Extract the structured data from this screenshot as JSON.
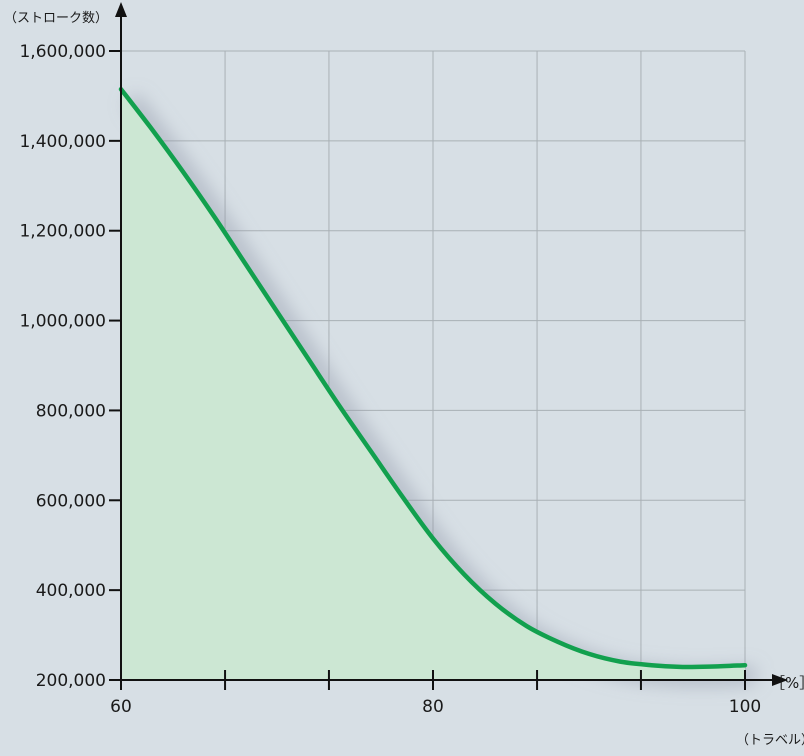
{
  "chart_data": {
    "type": "area",
    "title": "",
    "ylabel": "（ストローク数）",
    "xlabel": "（トラベル）",
    "x_unit": "［%］",
    "xlim": [
      60,
      100
    ],
    "ylim": [
      200000,
      1600000
    ],
    "y_ticks": [
      200000,
      400000,
      600000,
      800000,
      1000000,
      1200000,
      1400000,
      1600000
    ],
    "y_tick_labels": [
      "200,000",
      "400,000",
      "600,000",
      "800,000",
      "1,000,000",
      "1,200,000",
      "1,400,000",
      "1,600,000"
    ],
    "x_ticks": [
      60,
      80,
      100
    ],
    "x_tick_labels": [
      "60",
      "80",
      "100"
    ],
    "x_minor_ticks": [
      66.67,
      73.33,
      86.67,
      93.33
    ],
    "grid": true,
    "series": [
      {
        "color": "#12a04e",
        "fill": "#cce7d3",
        "x": [
          60,
          62,
          64,
          66,
          68,
          70,
          72,
          74,
          76,
          78,
          80,
          82,
          84,
          86,
          88,
          90,
          92,
          94,
          96,
          98,
          100
        ],
        "y": [
          1515000,
          1425000,
          1330000,
          1230000,
          1125000,
          1020000,
          915000,
          810000,
          710000,
          610000,
          515000,
          435000,
          370000,
          320000,
          285000,
          258000,
          241000,
          233000,
          229000,
          230000,
          233000
        ]
      }
    ]
  }
}
